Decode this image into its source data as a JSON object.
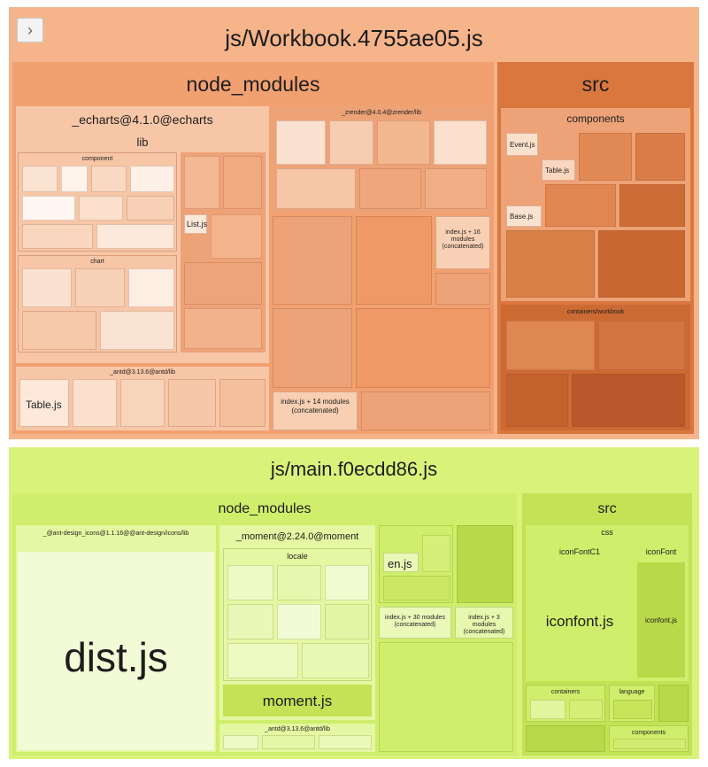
{
  "toggle": {
    "icon": "chevron-right-icon",
    "glyph": "›"
  },
  "bundle1": {
    "title": "js/Workbook.4755ae05.js",
    "node_modules": {
      "label": "node_modules",
      "echarts": {
        "label": "_echarts@4.1.0@echarts",
        "lib": "lib",
        "component": "component",
        "chart": "chart",
        "list": "List.js"
      },
      "antd": {
        "label": "_antd@3.13.6@antd/lib",
        "table": "Table.js"
      },
      "zrender": {
        "label": "_zrender@4.0.4@zrender/lib"
      },
      "index16": "index.js + 16 modules (concatenated)",
      "index14": "index.js + 14 modules (concatenated)"
    },
    "src": {
      "label": "src",
      "components": "components",
      "event": "Event.js",
      "table": "Table.js",
      "base": "Base.js",
      "containers": "containers/workbook"
    }
  },
  "bundle2": {
    "title": "js/main.f0ecdd86.js",
    "node_modules": {
      "label": "node_modules",
      "icons": {
        "label": "_@ant-design_icons@1.1.16@@ant-design/icons/lib",
        "dist": "dist.js"
      },
      "moment": {
        "label": "_moment@2.24.0@moment",
        "locale": "locale",
        "moment_js": "moment.js"
      },
      "antd": {
        "label": "_antd@3.13.6@antd/lib"
      },
      "en": "en.js",
      "index30": "index.js + 30 modules (concatenated)",
      "index3": "index.js + 3 modules (concatenated)"
    },
    "src": {
      "label": "src",
      "css": "css",
      "iconfont_c1": "iconFontC1",
      "iconfont": "iconFont",
      "iconfont_js_big": "iconfont.js",
      "iconfont_js_small": "iconfont.js",
      "containers": "containers",
      "language": "language",
      "components": "components"
    }
  }
}
